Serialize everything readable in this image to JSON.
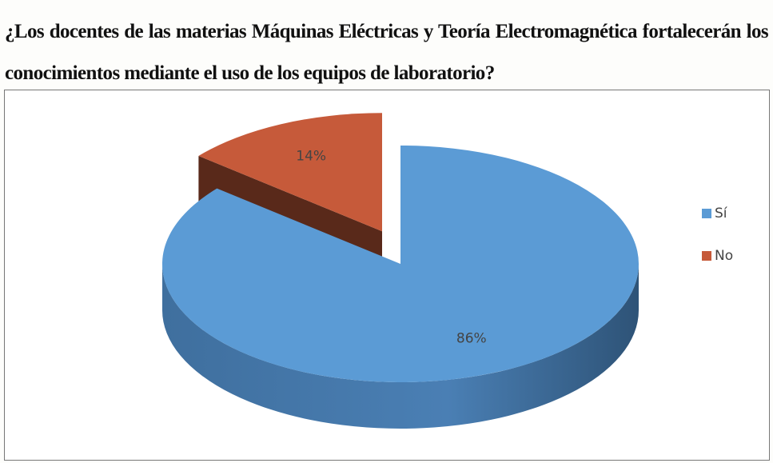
{
  "chart_data": {
    "type": "pie",
    "title": "¿Los docentes de las materias Máquinas Eléctricas y Teoría Electromagnética fortalecerán los conocimientos mediante el uso de los equipos de laboratorio?",
    "categories": [
      "Sí",
      "No"
    ],
    "values": [
      86,
      14
    ],
    "value_labels": [
      "86%",
      "14%"
    ],
    "colors": [
      "#5b9bd5",
      "#c65a3a"
    ],
    "legend": "right",
    "exploded": [
      false,
      true
    ]
  }
}
